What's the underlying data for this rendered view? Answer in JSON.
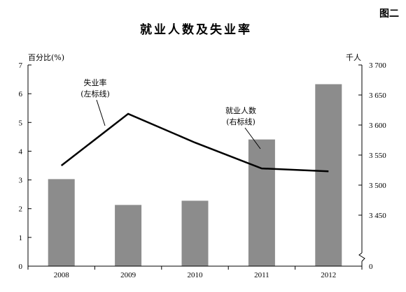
{
  "figure_label": "图二",
  "chart_data": {
    "type": "bar+line",
    "title": "就业人数及失业率",
    "categories": [
      "2008",
      "2009",
      "2010",
      "2011",
      "2012"
    ],
    "left_axis": {
      "label": "百分比(%)",
      "ylim": [
        0,
        7
      ],
      "ticks": [
        "0",
        "1",
        "2",
        "3",
        "4",
        "5",
        "6",
        "7"
      ]
    },
    "right_axis": {
      "label": "千人",
      "ylim": [
        3400,
        3700
      ],
      "ticks": [
        "0",
        "3 450",
        "3 500",
        "3 550",
        "3 600",
        "3 650",
        "3 700"
      ],
      "tick_values": [
        3400,
        3450,
        3500,
        3550,
        3600,
        3650,
        3700
      ],
      "axis_break": true
    },
    "series": [
      {
        "name": "就业人数",
        "type": "bar",
        "axis": "right",
        "annotation_lines": [
          "就业人数",
          "(右标线)"
        ],
        "color": "#8c8c8c",
        "values": [
          3510,
          3467,
          3474,
          3576,
          3668
        ]
      },
      {
        "name": "失业率",
        "type": "line",
        "axis": "left",
        "annotation_lines": [
          "失业率",
          "(左标线)"
        ],
        "color": "#000000",
        "values": [
          3.5,
          5.3,
          4.3,
          3.4,
          3.3
        ]
      }
    ],
    "grid": false
  }
}
